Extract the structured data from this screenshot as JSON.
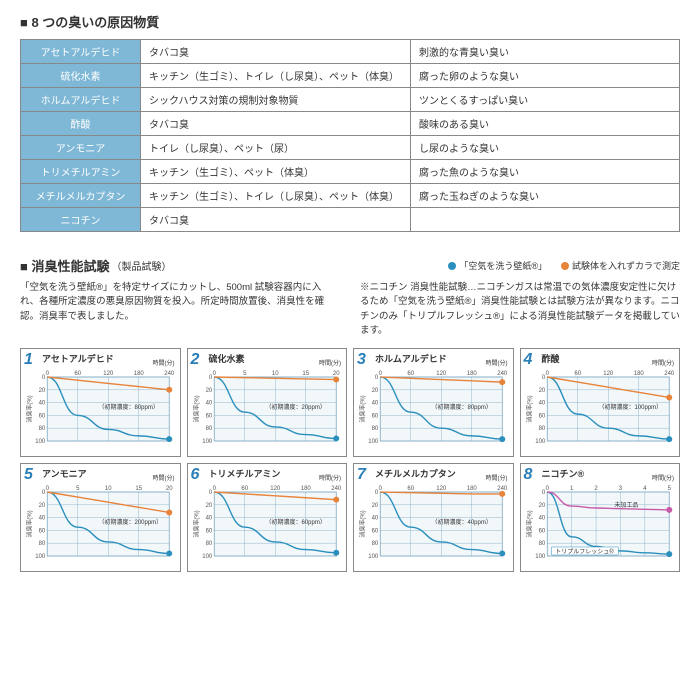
{
  "section1_title": "8 つの臭いの原因物質",
  "substances": [
    {
      "name": "アセトアルデヒド",
      "src": "タバコ臭",
      "smell": "刺激的な青臭い臭い"
    },
    {
      "name": "硫化水素",
      "src": "キッチン（生ゴミ）、トイレ（し尿臭）、ペット（体臭）",
      "smell": "腐った卵のような臭い"
    },
    {
      "name": "ホルムアルデヒド",
      "src": "シックハウス対策の規制対象物質",
      "smell": "ツンとくるすっぱい臭い"
    },
    {
      "name": "酢酸",
      "src": "タバコ臭",
      "smell": "酸味のある臭い"
    },
    {
      "name": "アンモニア",
      "src": "トイレ（し尿臭）、ペット（尿）",
      "smell": "し尿のような臭い"
    },
    {
      "name": "トリメチルアミン",
      "src": "キッチン（生ゴミ）、ペット（体臭）",
      "smell": "腐った魚のような臭い"
    },
    {
      "name": "メチルメルカプタン",
      "src": "キッチン（生ゴミ）、トイレ（し尿臭）、ペット（体臭）",
      "smell": "腐った玉ねぎのような臭い"
    },
    {
      "name": "ニコチン",
      "src": "タバコ臭",
      "smell": ""
    }
  ],
  "section2_title": "消臭性能試験",
  "section2_sub": "（製品試験）",
  "legend_blue": "「空気を洗う壁紙®」",
  "legend_orange": "試験体を入れずカラで測定",
  "desc_left": "「空気を洗う壁紙®」を特定サイズにカットし、500ml 試験容器内に入れ、各種所定濃度の悪臭原因物質を投入。所定時間放置後、消臭性を確認。消臭率で表しました。",
  "desc_right": "※ニコチン 消臭性能試験…ニコチンガスは常温での気体濃度安定性に欠けるため「空気を洗う壁紙®」消臭性能試験とは試験方法が異なります。ニコチンのみ「トリプルフレッシュ®」による消臭性能試験データを掲載しています。",
  "colors": {
    "blue": "#2a8fbd",
    "orange": "#e8833a",
    "magenta": "#c85aa8",
    "grid": "#7aa7c2",
    "grid_bg": "#d9e8f2"
  },
  "x_ticks": [
    0,
    60,
    120,
    180,
    240
  ],
  "x_ticks_short": [
    0,
    5,
    10,
    15,
    20
  ],
  "y_ticks": [
    0,
    20,
    40,
    60,
    80,
    100
  ],
  "time_label": "時間(分)",
  "y_label": "消臭率(%)",
  "charts": [
    {
      "n": 1,
      "label": "アセトアルデヒド",
      "init": "（初期濃度：80ppm）",
      "x": [
        0,
        60,
        120,
        180,
        240
      ],
      "blue": [
        0,
        60,
        82,
        92,
        97
      ],
      "orange": [
        0,
        5,
        10,
        15,
        20
      ]
    },
    {
      "n": 2,
      "label": "硫化水素",
      "init": "（初期濃度：20ppm）",
      "x": [
        0,
        5,
        10,
        15,
        20
      ],
      "short": true,
      "blue": [
        0,
        55,
        78,
        90,
        96
      ],
      "orange": [
        0,
        1,
        2,
        3,
        4
      ]
    },
    {
      "n": 3,
      "label": "ホルムアルデヒド",
      "init": "（初期濃度：80ppm）",
      "x": [
        0,
        60,
        120,
        180,
        240
      ],
      "blue": [
        0,
        55,
        80,
        92,
        97
      ],
      "orange": [
        0,
        2,
        4,
        6,
        8
      ]
    },
    {
      "n": 4,
      "label": "酢酸",
      "init": "（初期濃度：100ppm）",
      "x": [
        0,
        60,
        120,
        180,
        240
      ],
      "blue": [
        0,
        58,
        80,
        92,
        97
      ],
      "orange": [
        0,
        8,
        16,
        24,
        32
      ]
    },
    {
      "n": 5,
      "label": "アンモニア",
      "init": "（初期濃度：200ppm）",
      "x": [
        0,
        5,
        10,
        15,
        20
      ],
      "short": true,
      "blue": [
        0,
        55,
        78,
        90,
        96
      ],
      "orange": [
        0,
        8,
        16,
        24,
        32
      ]
    },
    {
      "n": 6,
      "label": "トリメチルアミン",
      "init": "（初期濃度：60ppm）",
      "x": [
        0,
        60,
        120,
        180,
        240
      ],
      "blue": [
        0,
        55,
        78,
        90,
        95
      ],
      "orange": [
        0,
        3,
        6,
        9,
        12
      ]
    },
    {
      "n": 7,
      "label": "メチルメルカプタン",
      "init": "（初期濃度：40ppm）",
      "x": [
        0,
        60,
        120,
        180,
        240
      ],
      "blue": [
        0,
        55,
        78,
        90,
        96
      ],
      "orange": [
        0,
        1,
        2,
        3,
        3
      ]
    },
    {
      "n": 8,
      "label": "ニコチン®",
      "init": "",
      "x": [
        0,
        1,
        2,
        3,
        4,
        5
      ],
      "nicotine": true,
      "blue": [
        0,
        70,
        85,
        92,
        95,
        97
      ],
      "magenta": [
        0,
        22,
        25,
        26,
        27,
        28
      ],
      "blue_label": "トリプルフレッシュ®",
      "magenta_label": "未加工品"
    }
  ]
}
